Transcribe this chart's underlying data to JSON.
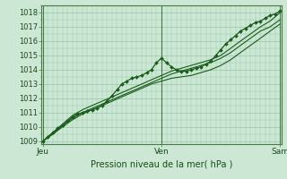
{
  "background_color": "#cce8d4",
  "plot_bg_color": "#cce8d4",
  "grid_color": "#99c4aa",
  "line_color": "#1a5c1a",
  "marker_color": "#1a5c1a",
  "xlabel": "Pression niveau de la mer( hPa )",
  "ylim": [
    1008.8,
    1018.5
  ],
  "yticks": [
    1009,
    1010,
    1011,
    1012,
    1013,
    1014,
    1015,
    1016,
    1017,
    1018
  ],
  "xtick_labels": [
    "Jeu",
    "Ven",
    "Sam"
  ],
  "xtick_positions": [
    0.0,
    0.5,
    1.0
  ],
  "x_vlines": [
    0.0,
    0.5,
    1.0
  ],
  "series1_x": [
    0.0,
    0.021,
    0.042,
    0.063,
    0.083,
    0.104,
    0.125,
    0.146,
    0.167,
    0.188,
    0.208,
    0.229,
    0.25,
    0.271,
    0.292,
    0.313,
    0.333,
    0.354,
    0.375,
    0.396,
    0.417,
    0.438,
    0.458,
    0.479,
    0.5,
    0.521,
    0.542,
    0.563,
    0.583,
    0.604,
    0.625,
    0.646,
    0.667,
    0.688,
    0.708,
    0.729,
    0.75,
    0.771,
    0.792,
    0.813,
    0.833,
    0.854,
    0.875,
    0.896,
    0.917,
    0.938,
    0.958,
    0.979,
    1.0
  ],
  "series1_y": [
    1009.0,
    1009.3,
    1009.6,
    1009.9,
    1010.1,
    1010.4,
    1010.7,
    1010.9,
    1011.0,
    1011.1,
    1011.2,
    1011.3,
    1011.5,
    1011.8,
    1012.2,
    1012.6,
    1013.0,
    1013.2,
    1013.4,
    1013.5,
    1013.6,
    1013.8,
    1014.0,
    1014.5,
    1014.8,
    1014.5,
    1014.2,
    1014.0,
    1013.9,
    1013.9,
    1014.0,
    1014.1,
    1014.2,
    1014.4,
    1014.6,
    1015.0,
    1015.4,
    1015.8,
    1016.1,
    1016.4,
    1016.7,
    1016.9,
    1017.1,
    1017.3,
    1017.4,
    1017.6,
    1017.8,
    1017.9,
    1018.1
  ],
  "series2_x": [
    0.0,
    0.042,
    0.083,
    0.125,
    0.167,
    0.208,
    0.25,
    0.292,
    0.333,
    0.375,
    0.417,
    0.458,
    0.5,
    0.542,
    0.583,
    0.625,
    0.667,
    0.708,
    0.75,
    0.792,
    0.833,
    0.875,
    0.917,
    0.958,
    1.0
  ],
  "series2_y": [
    1009.0,
    1009.5,
    1010.0,
    1010.5,
    1010.9,
    1011.2,
    1011.5,
    1011.8,
    1012.1,
    1012.4,
    1012.7,
    1013.0,
    1013.2,
    1013.4,
    1013.5,
    1013.6,
    1013.8,
    1014.0,
    1014.3,
    1014.7,
    1015.2,
    1015.7,
    1016.2,
    1016.7,
    1017.2
  ],
  "series3_x": [
    0.0,
    0.042,
    0.083,
    0.125,
    0.167,
    0.208,
    0.25,
    0.292,
    0.333,
    0.375,
    0.417,
    0.458,
    0.5,
    0.542,
    0.583,
    0.625,
    0.667,
    0.708,
    0.75,
    0.792,
    0.833,
    0.875,
    0.917,
    0.958,
    1.0
  ],
  "series3_y": [
    1009.0,
    1009.5,
    1010.1,
    1010.6,
    1011.0,
    1011.3,
    1011.6,
    1011.9,
    1012.2,
    1012.5,
    1012.8,
    1013.1,
    1013.4,
    1013.7,
    1013.9,
    1014.1,
    1014.3,
    1014.5,
    1014.8,
    1015.2,
    1015.7,
    1016.2,
    1016.7,
    1017.0,
    1017.5
  ],
  "series4_x": [
    0.0,
    0.042,
    0.083,
    0.125,
    0.167,
    0.208,
    0.25,
    0.292,
    0.333,
    0.375,
    0.417,
    0.458,
    0.5,
    0.542,
    0.583,
    0.625,
    0.667,
    0.708,
    0.75,
    0.792,
    0.833,
    0.875,
    0.917,
    0.958,
    1.0
  ],
  "series4_y": [
    1009.0,
    1009.6,
    1010.2,
    1010.8,
    1011.2,
    1011.5,
    1011.8,
    1012.1,
    1012.4,
    1012.7,
    1013.0,
    1013.3,
    1013.6,
    1013.9,
    1014.1,
    1014.3,
    1014.5,
    1014.7,
    1015.0,
    1015.5,
    1016.0,
    1016.5,
    1017.0,
    1017.4,
    1018.0
  ]
}
